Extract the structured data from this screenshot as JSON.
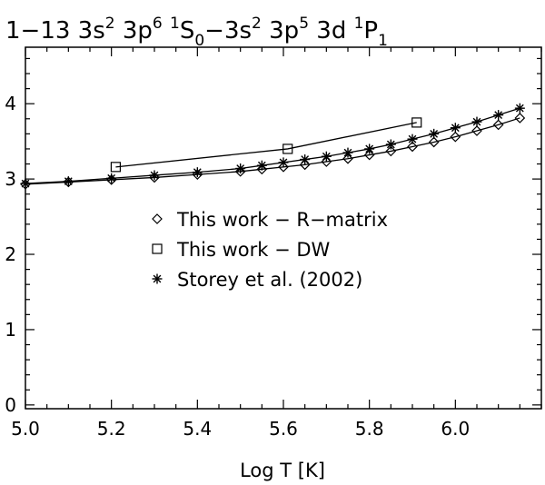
{
  "chart_data": {
    "type": "line",
    "title": {
      "prefix": "1−13 3s",
      "parts": [
        {
          "t": "1−13 3s",
          "s": ""
        },
        {
          "t": "2",
          "s": "sup"
        },
        {
          "t": " 3p",
          "s": ""
        },
        {
          "t": "6",
          "s": "sup"
        },
        {
          "t": " ",
          "s": ""
        },
        {
          "t": "1",
          "s": "sup"
        },
        {
          "t": "S",
          "s": ""
        },
        {
          "t": "0",
          "s": "sub"
        },
        {
          "t": "−3s",
          "s": ""
        },
        {
          "t": "2",
          "s": "sup"
        },
        {
          "t": " 3p",
          "s": ""
        },
        {
          "t": "5",
          "s": "sup"
        },
        {
          "t": " 3d ",
          "s": ""
        },
        {
          "t": "1",
          "s": "sup"
        },
        {
          "t": "P",
          "s": ""
        },
        {
          "t": "1",
          "s": "sub"
        }
      ]
    },
    "xlabel": "Log T [K]",
    "ylabel": "",
    "xlim": [
      5.0,
      6.2
    ],
    "ylim": [
      -0.05,
      4.75
    ],
    "xticks": [
      5.0,
      5.2,
      5.4,
      5.6,
      5.8,
      6.0
    ],
    "xtick_labels": [
      "5.0",
      "5.2",
      "5.4",
      "5.6",
      "5.8",
      "6.0"
    ],
    "xminor_step": 0.05,
    "yticks": [
      0,
      1,
      2,
      3,
      4
    ],
    "ytick_labels": [
      "0",
      "1",
      "2",
      "3",
      "4"
    ],
    "yminor_step": 0.2,
    "grid": false,
    "legend_position": "center-left",
    "series": [
      {
        "name": "This work − R−matrix",
        "marker": "diamond",
        "x": [
          5.0,
          5.1,
          5.2,
          5.3,
          5.4,
          5.5,
          5.55,
          5.6,
          5.65,
          5.7,
          5.75,
          5.8,
          5.85,
          5.9,
          5.95,
          6.0,
          6.05,
          6.1,
          6.15
        ],
        "y": [
          2.93,
          2.96,
          2.99,
          3.02,
          3.06,
          3.1,
          3.13,
          3.16,
          3.19,
          3.23,
          3.27,
          3.32,
          3.37,
          3.43,
          3.49,
          3.56,
          3.64,
          3.72,
          3.81
        ]
      },
      {
        "name": "This work − DW",
        "marker": "square",
        "x": [
          5.21,
          5.61,
          5.91
        ],
        "y": [
          3.16,
          3.4,
          3.75
        ]
      },
      {
        "name": "Storey et al. (2002)",
        "marker": "asterisk",
        "x": [
          5.0,
          5.1,
          5.2,
          5.3,
          5.4,
          5.5,
          5.55,
          5.6,
          5.65,
          5.7,
          5.75,
          5.8,
          5.85,
          5.9,
          5.95,
          6.0,
          6.05,
          6.1,
          6.15
        ],
        "y": [
          2.94,
          2.97,
          3.01,
          3.05,
          3.09,
          3.14,
          3.18,
          3.22,
          3.26,
          3.3,
          3.35,
          3.4,
          3.46,
          3.53,
          3.6,
          3.68,
          3.76,
          3.85,
          3.94
        ]
      }
    ],
    "legend_entries": [
      {
        "marker": "diamond",
        "label": "This work − R−matrix"
      },
      {
        "marker": "square",
        "label": "This work − DW"
      },
      {
        "marker": "asterisk",
        "label": "Storey et al. (2002)"
      }
    ]
  }
}
